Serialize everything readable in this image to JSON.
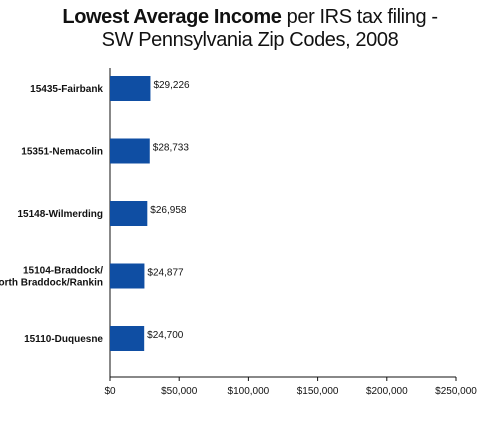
{
  "title": {
    "bold": "Lowest Average Income",
    "rest": " per IRS tax filing -",
    "line2": "SW Pennsylvania Zip Codes, 2008"
  },
  "chart_data": {
    "type": "bar",
    "orientation": "horizontal",
    "title": "Lowest Average Income per IRS tax filing - SW Pennsylvania Zip Codes, 2008",
    "categories": [
      [
        "15435-Fairbank"
      ],
      [
        "15351-Nemacolin"
      ],
      [
        "15148-Wilmerding"
      ],
      [
        "15104-Braddock/",
        "North Braddock/Rankin"
      ],
      [
        "15110-Duquesne"
      ]
    ],
    "values": [
      29226,
      28733,
      26958,
      24877,
      24700
    ],
    "value_labels": [
      "$29,226",
      "$28,733",
      "$26,958",
      "$24,877",
      "$24,700"
    ],
    "xlim": [
      0,
      250000
    ],
    "xticks": [
      0,
      50000,
      100000,
      150000,
      200000,
      250000
    ],
    "xtick_labels": [
      "$0",
      "$50,000",
      "$100,000",
      "$150,000",
      "$200,000",
      "$250,000"
    ],
    "bar_color": "#0f4ea3",
    "grid": false,
    "legend": "none"
  }
}
